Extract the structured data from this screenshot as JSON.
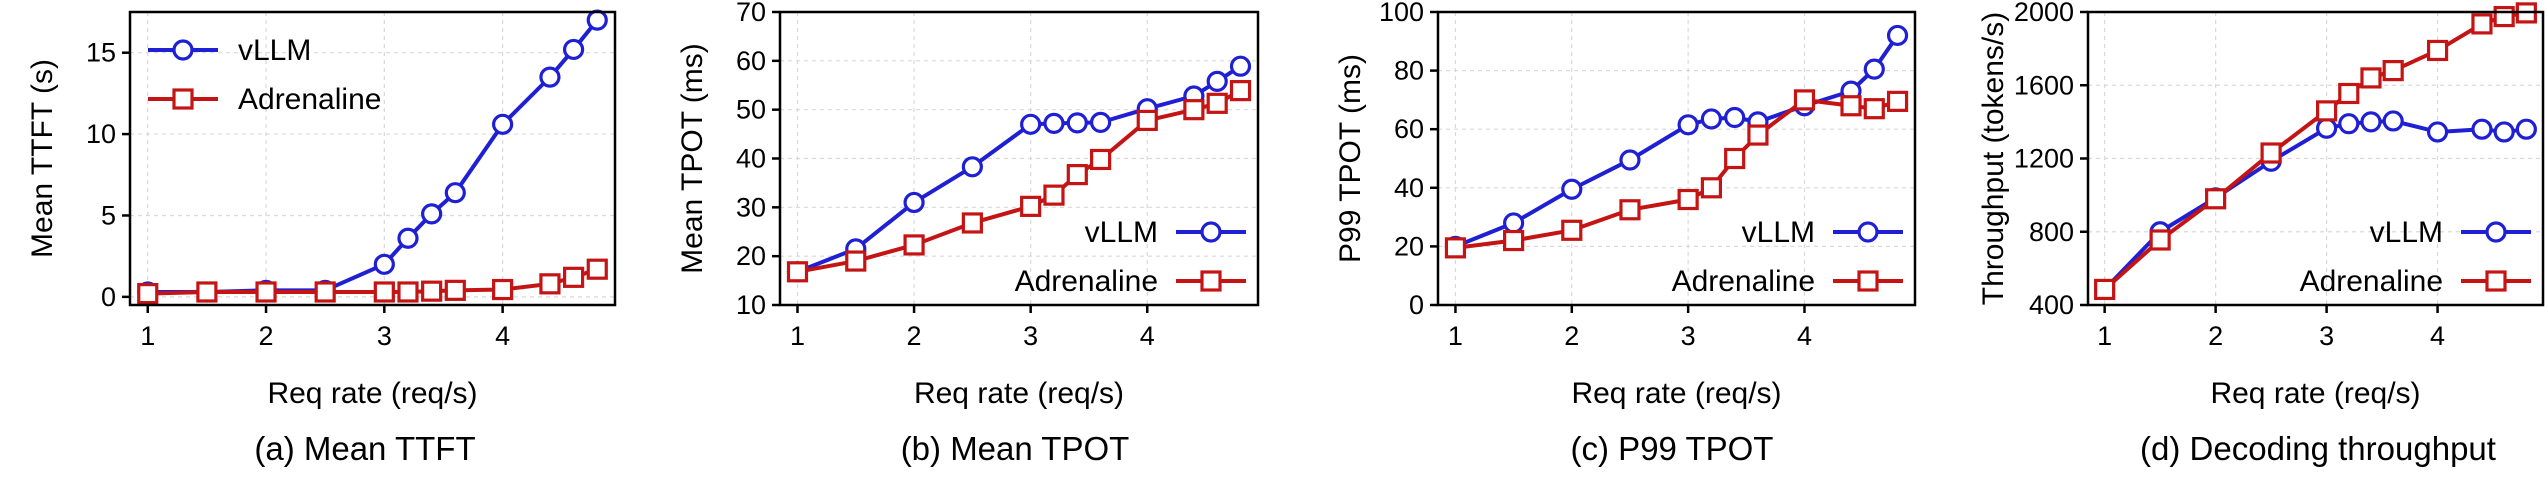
{
  "figure": {
    "panels": [
      {
        "caption": "(a) Mean TTFT",
        "legend_position": "upper-left"
      },
      {
        "caption": "(b) Mean TPOT",
        "legend_position": "lower-right"
      },
      {
        "caption": "(c) P99 TPOT",
        "legend_position": "lower-right"
      },
      {
        "caption": "(d) Decoding throughput",
        "legend_position": "lower-right"
      }
    ]
  },
  "chart_data": [
    {
      "type": "line",
      "title": "(a) Mean TTFT",
      "xlabel": "Req rate (req/s)",
      "ylabel": "Mean TTFT (s)",
      "xlim": [
        0.85,
        4.95
      ],
      "ylim": [
        -0.5,
        17.5
      ],
      "xticks": [
        1,
        2,
        3,
        4
      ],
      "xtick_labels": [
        "1",
        "2",
        "3",
        "4"
      ],
      "yticks": [
        0,
        5,
        10,
        15
      ],
      "ytick_labels": [
        "0",
        "5",
        "10",
        "15"
      ],
      "grid": true,
      "legend": "upper-left",
      "x": [
        1,
        1.5,
        2,
        2.5,
        3,
        3.2,
        3.4,
        3.6,
        4,
        4.4,
        4.6,
        4.8
      ],
      "series": [
        {
          "name": "vLLM",
          "color": "#1f1fd4",
          "marker": "circle",
          "values": [
            0.3,
            0.3,
            0.4,
            0.4,
            2.0,
            3.6,
            5.1,
            6.4,
            10.6,
            13.5,
            15.2,
            17.0
          ]
        },
        {
          "name": "Adrenaline",
          "color": "#c41414",
          "marker": "square",
          "values": [
            0.2,
            0.3,
            0.3,
            0.3,
            0.3,
            0.3,
            0.35,
            0.4,
            0.45,
            0.8,
            1.2,
            1.7
          ]
        }
      ]
    },
    {
      "type": "line",
      "title": "(b) Mean TPOT",
      "xlabel": "Req rate (req/s)",
      "ylabel": "Mean TPOT (ms)",
      "xlim": [
        0.85,
        4.95
      ],
      "ylim": [
        10,
        70
      ],
      "xticks": [
        1,
        2,
        3,
        4
      ],
      "xtick_labels": [
        "1",
        "2",
        "3",
        "4"
      ],
      "yticks": [
        10,
        20,
        30,
        40,
        50,
        60,
        70
      ],
      "ytick_labels": [
        "10",
        "20",
        "30",
        "40",
        "50",
        "60",
        "70"
      ],
      "grid": true,
      "legend": "lower-right",
      "x": [
        1,
        1.5,
        2,
        2.5,
        3,
        3.2,
        3.4,
        3.6,
        4,
        4.4,
        4.6,
        4.8
      ],
      "series": [
        {
          "name": "vLLM",
          "color": "#1f1fd4",
          "marker": "circle",
          "values": [
            16.8,
            21.5,
            31.0,
            38.3,
            47.0,
            47.2,
            47.3,
            47.4,
            50.2,
            52.8,
            55.8,
            58.9
          ]
        },
        {
          "name": "Adrenaline",
          "color": "#c41414",
          "marker": "square",
          "values": [
            16.8,
            19.0,
            22.3,
            26.8,
            30.2,
            32.5,
            36.7,
            39.8,
            47.8,
            50.0,
            51.3,
            53.9
          ]
        }
      ]
    },
    {
      "type": "line",
      "title": "(c) P99 TPOT",
      "xlabel": "Req rate (req/s)",
      "ylabel": "P99 TPOT (ms)",
      "xlim": [
        0.85,
        4.95
      ],
      "ylim": [
        0,
        100
      ],
      "xticks": [
        1,
        2,
        3,
        4
      ],
      "xtick_labels": [
        "1",
        "2",
        "3",
        "4"
      ],
      "yticks": [
        0,
        20,
        40,
        60,
        80,
        100
      ],
      "ytick_labels": [
        "0",
        "20",
        "40",
        "60",
        "80",
        "100"
      ],
      "grid": true,
      "legend": "lower-right",
      "x": [
        1,
        1.5,
        2,
        2.5,
        3,
        3.2,
        3.4,
        3.6,
        4,
        4.4,
        4.6,
        4.8
      ],
      "series": [
        {
          "name": "vLLM",
          "color": "#1f1fd4",
          "marker": "circle",
          "values": [
            20.0,
            28.0,
            39.5,
            49.5,
            61.5,
            63.5,
            64.0,
            62.5,
            68.0,
            73.0,
            80.5,
            92.0
          ]
        },
        {
          "name": "Adrenaline",
          "color": "#c41414",
          "marker": "square",
          "values": [
            19.5,
            22.0,
            25.5,
            32.5,
            36.0,
            40.0,
            50.0,
            58.0,
            70.0,
            68.0,
            67.0,
            69.5
          ]
        }
      ]
    },
    {
      "type": "line",
      "title": "(d) Decoding throughput",
      "xlabel": "Req rate (req/s)",
      "ylabel": "Throughput (tokens/s)",
      "xlim": [
        0.85,
        4.95
      ],
      "ylim": [
        400,
        2000
      ],
      "xticks": [
        1,
        2,
        3,
        4
      ],
      "xtick_labels": [
        "1",
        "2",
        "3",
        "4"
      ],
      "yticks": [
        400,
        800,
        1200,
        1600,
        2000
      ],
      "ytick_labels": [
        "400",
        "800",
        "1200",
        "1600",
        "2000"
      ],
      "grid": true,
      "legend": "lower-right",
      "x": [
        1,
        1.5,
        2,
        2.5,
        3,
        3.2,
        3.4,
        3.6,
        4,
        4.4,
        4.6,
        4.8
      ],
      "series": [
        {
          "name": "vLLM",
          "color": "#1f1fd4",
          "marker": "circle",
          "values": [
            485,
            800,
            985,
            1185,
            1365,
            1390,
            1400,
            1405,
            1345,
            1360,
            1345,
            1360
          ]
        },
        {
          "name": "Adrenaline",
          "color": "#c41414",
          "marker": "square",
          "values": [
            485,
            755,
            980,
            1230,
            1460,
            1555,
            1640,
            1680,
            1790,
            1935,
            1975,
            1995
          ]
        }
      ]
    }
  ]
}
